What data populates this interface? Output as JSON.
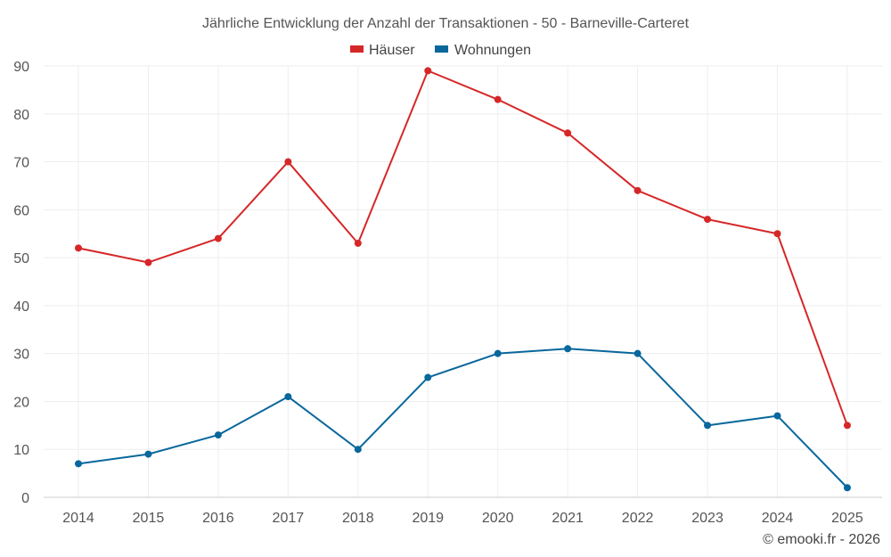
{
  "chart_data": {
    "type": "line",
    "title": "Jährliche Entwicklung der Anzahl der Transaktionen - 50 - Barneville-Carteret",
    "categories": [
      "2014",
      "2015",
      "2016",
      "2017",
      "2018",
      "2019",
      "2020",
      "2021",
      "2022",
      "2023",
      "2024",
      "2025"
    ],
    "series": [
      {
        "name": "Häuser",
        "color": "#d62728",
        "values": [
          52,
          49,
          54,
          70,
          53,
          89,
          83,
          76,
          64,
          58,
          55,
          15
        ]
      },
      {
        "name": "Wohnungen",
        "color": "#08679c",
        "values": [
          7,
          9,
          13,
          21,
          10,
          25,
          30,
          31,
          30,
          15,
          17,
          2
        ]
      }
    ],
    "yticks": [
      0,
      10,
      20,
      30,
      40,
      50,
      60,
      70,
      80,
      90
    ],
    "ylim": [
      0,
      90
    ],
    "xlabel": "",
    "ylabel": "",
    "grid": true,
    "legend_position": "top-center"
  },
  "credit": "© emooki.fr - 2026"
}
